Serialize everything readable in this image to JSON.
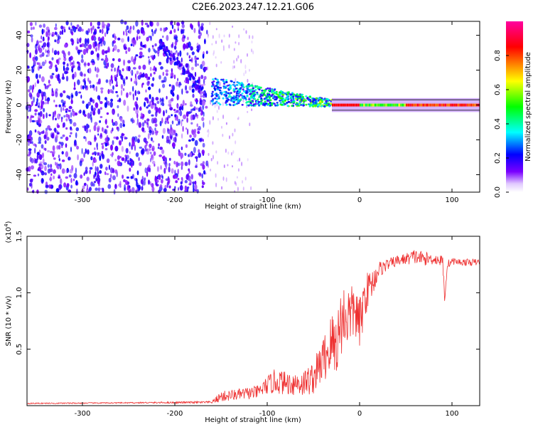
{
  "figure_title": "C2E6.2023.247.12.21.G06",
  "chart_data": [
    {
      "type": "heatmap",
      "xlabel": "Height of straight line (km)",
      "ylabel": "Frequency (Hz)",
      "xlim": [
        -360,
        130
      ],
      "ylim": [
        -50,
        48
      ],
      "x_ticks": [
        -300,
        -200,
        -100,
        0,
        100
      ],
      "y_ticks": [
        -40,
        -20,
        0,
        20,
        40
      ],
      "colorbar": {
        "label": "Normalized spectral amplitude",
        "range": [
          0.0,
          1.0
        ],
        "ticks": [
          "0.0",
          "0.2",
          "0.4",
          "0.6",
          "0.8"
        ],
        "colormap": "rainbow (white → violet → blue → cyan → green → yellow → red → magenta)"
      },
      "features": {
        "noise_region_km": [
          -360,
          -165
        ],
        "drifting_streak_from": [
          -220,
          38
        ],
        "drifting_streak_to": [
          -170,
          8
        ],
        "central_signal_km": [
          -160,
          130
        ],
        "central_frequency_hz": 0,
        "strong_signal_from_km": -30
      }
    },
    {
      "type": "line",
      "series_color": "#ee3030",
      "xlabel": "Height of straight line (km)",
      "ylabel": "SNR (10 * v/v)",
      "scale_label": "(x10",
      "scale_exp": "4",
      "scale_close": ")",
      "xlim": [
        -360,
        130
      ],
      "ylim": [
        0.0,
        1.5
      ],
      "x_ticks": [
        -300,
        -200,
        -100,
        0,
        100
      ],
      "y_ticks": [
        0.5,
        1.0,
        1.5
      ],
      "y_tick_labels": [
        "0.5",
        "1.0",
        "1.5"
      ],
      "envelope": {
        "x": [
          -360,
          -250,
          -160,
          -150,
          -130,
          -110,
          -100,
          -90,
          -80,
          -70,
          -60,
          -50,
          -40,
          -30,
          -25,
          -20,
          -15,
          -10,
          -5,
          0,
          5,
          10,
          15,
          20,
          30,
          40,
          50,
          60,
          70,
          80,
          90,
          92,
          95,
          100,
          110,
          120,
          130
        ],
        "y": [
          0.02,
          0.025,
          0.03,
          0.08,
          0.1,
          0.12,
          0.18,
          0.22,
          0.2,
          0.2,
          0.2,
          0.25,
          0.4,
          0.55,
          0.55,
          0.75,
          0.8,
          0.8,
          0.85,
          0.7,
          0.95,
          1.05,
          1.1,
          1.2,
          1.25,
          1.28,
          1.3,
          1.32,
          1.3,
          1.3,
          1.28,
          0.95,
          1.25,
          1.28,
          1.27,
          1.27,
          1.27
        ],
        "noise": [
          0.005,
          0.005,
          0.01,
          0.05,
          0.05,
          0.06,
          0.08,
          0.12,
          0.1,
          0.12,
          0.12,
          0.15,
          0.2,
          0.3,
          0.3,
          0.3,
          0.35,
          0.25,
          0.25,
          0.25,
          0.2,
          0.15,
          0.12,
          0.08,
          0.05,
          0.05,
          0.05,
          0.07,
          0.06,
          0.05,
          0.05,
          0.05,
          0.04,
          0.03,
          0.03,
          0.03,
          0.03
        ]
      }
    }
  ]
}
